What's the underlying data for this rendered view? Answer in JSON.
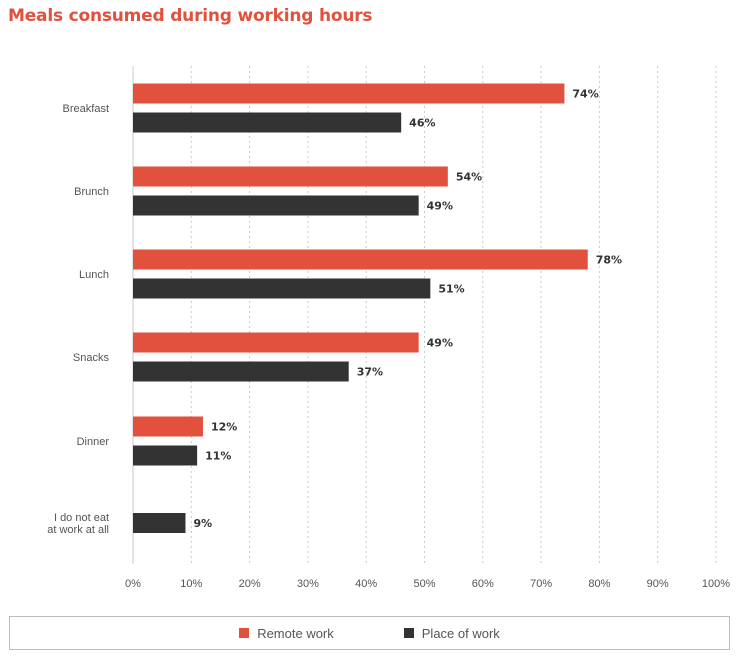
{
  "chart_data": {
    "type": "bar",
    "orientation": "horizontal",
    "title": "Meals consumed during working hours",
    "categories": [
      "Breakfast",
      "Brunch",
      "Lunch",
      "Snacks",
      "Dinner",
      "I do not eat at work at all"
    ],
    "series": [
      {
        "name": "Remote work",
        "color": "#e2503e",
        "values": [
          74,
          54,
          78,
          49,
          12,
          null
        ]
      },
      {
        "name": "Place of work",
        "color": "#333333",
        "values": [
          46,
          49,
          51,
          37,
          11,
          9
        ]
      }
    ],
    "value_suffix": "%",
    "xlim": [
      0,
      100
    ],
    "xticks": [
      "0%",
      "10%",
      "20%",
      "30%",
      "40%",
      "50%",
      "60%",
      "70%",
      "80%",
      "90%",
      "100%"
    ],
    "grid": "vertical dashed",
    "legend": "bottom"
  }
}
